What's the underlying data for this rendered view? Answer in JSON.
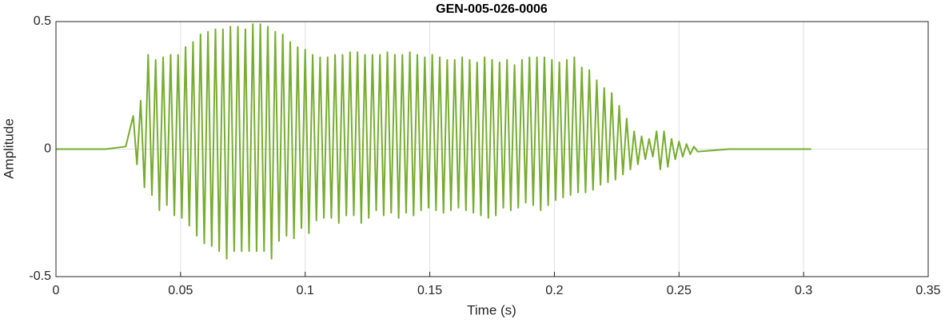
{
  "chart_data": {
    "type": "line",
    "title": "GEN-005-026-0006",
    "xlabel": "Time (s)",
    "ylabel": "Amplitude",
    "xlim": [
      0,
      0.35
    ],
    "xticks": [
      0,
      0.05,
      0.1,
      0.15,
      0.2,
      0.25,
      0.3,
      0.35
    ],
    "ylim": [
      -0.5,
      0.5
    ],
    "yticks": [
      -0.5,
      0,
      0.5
    ],
    "grid": true,
    "series": [
      {
        "color": "#77ac30",
        "x": [
          0,
          0.01,
          0.02,
          0.028,
          0.031,
          0.0325,
          0.034,
          0.0355,
          0.037,
          0.0385,
          0.04,
          0.0415,
          0.043,
          0.0445,
          0.046,
          0.0475,
          0.049,
          0.0505,
          0.052,
          0.0535,
          0.055,
          0.0565,
          0.058,
          0.0595,
          0.061,
          0.0625,
          0.064,
          0.0655,
          0.067,
          0.0685,
          0.07,
          0.0715,
          0.073,
          0.0745,
          0.076,
          0.0775,
          0.079,
          0.0805,
          0.082,
          0.0835,
          0.085,
          0.0865,
          0.088,
          0.0895,
          0.091,
          0.0925,
          0.094,
          0.0955,
          0.097,
          0.0985,
          0.1,
          0.1015,
          0.103,
          0.1045,
          0.106,
          0.1075,
          0.109,
          0.1105,
          0.112,
          0.1135,
          0.115,
          0.1165,
          0.118,
          0.1195,
          0.121,
          0.1225,
          0.124,
          0.1255,
          0.127,
          0.1285,
          0.13,
          0.1315,
          0.133,
          0.1345,
          0.136,
          0.1375,
          0.139,
          0.1405,
          0.142,
          0.1435,
          0.145,
          0.1465,
          0.148,
          0.1495,
          0.151,
          0.1525,
          0.154,
          0.1555,
          0.157,
          0.1585,
          0.16,
          0.1615,
          0.163,
          0.1645,
          0.166,
          0.1675,
          0.169,
          0.1705,
          0.172,
          0.1735,
          0.175,
          0.1765,
          0.178,
          0.1795,
          0.181,
          0.1825,
          0.184,
          0.1855,
          0.187,
          0.1885,
          0.19,
          0.1915,
          0.193,
          0.1945,
          0.196,
          0.1975,
          0.199,
          0.2005,
          0.202,
          0.2035,
          0.205,
          0.2065,
          0.208,
          0.2095,
          0.211,
          0.2125,
          0.214,
          0.2155,
          0.217,
          0.2185,
          0.22,
          0.2215,
          0.223,
          0.2245,
          0.226,
          0.2275,
          0.229,
          0.2305,
          0.232,
          0.2335,
          0.235,
          0.2365,
          0.238,
          0.2395,
          0.241,
          0.2425,
          0.244,
          0.2455,
          0.247,
          0.2485,
          0.25,
          0.2515,
          0.253,
          0.2545,
          0.256,
          0.2575,
          0.27,
          0.29,
          0.303
        ],
        "values": [
          0,
          0,
          0,
          0.01,
          0.13,
          -0.06,
          0.19,
          -0.15,
          0.37,
          -0.18,
          0.35,
          -0.24,
          0.36,
          -0.22,
          0.37,
          -0.26,
          0.37,
          -0.27,
          0.4,
          -0.3,
          0.42,
          -0.34,
          0.45,
          -0.37,
          0.46,
          -0.38,
          0.47,
          -0.4,
          0.47,
          -0.43,
          0.48,
          -0.4,
          0.48,
          -0.4,
          0.47,
          -0.4,
          0.49,
          -0.4,
          0.49,
          -0.4,
          0.48,
          -0.43,
          0.46,
          -0.36,
          0.45,
          -0.34,
          0.42,
          -0.35,
          0.4,
          -0.31,
          0.39,
          -0.33,
          0.37,
          -0.28,
          0.36,
          -0.27,
          0.36,
          -0.27,
          0.37,
          -0.29,
          0.37,
          -0.26,
          0.38,
          -0.26,
          0.38,
          -0.29,
          0.37,
          -0.27,
          0.37,
          -0.24,
          0.37,
          -0.26,
          0.38,
          -0.25,
          0.37,
          -0.27,
          0.37,
          -0.25,
          0.38,
          -0.26,
          0.37,
          -0.24,
          0.36,
          -0.23,
          0.37,
          -0.24,
          0.36,
          -0.25,
          0.35,
          -0.24,
          0.35,
          -0.23,
          0.36,
          -0.24,
          0.35,
          -0.25,
          0.34,
          -0.26,
          0.36,
          -0.27,
          0.35,
          -0.26,
          0.34,
          -0.23,
          0.35,
          -0.24,
          0.33,
          -0.23,
          0.35,
          -0.21,
          0.36,
          -0.22,
          0.36,
          -0.24,
          0.36,
          -0.22,
          0.35,
          -0.2,
          0.34,
          -0.19,
          0.35,
          -0.18,
          0.36,
          -0.17,
          0.32,
          -0.17,
          0.31,
          -0.16,
          0.27,
          -0.14,
          0.24,
          -0.13,
          0.22,
          -0.12,
          0.17,
          -0.1,
          0.12,
          -0.08,
          0.07,
          -0.06,
          0.05,
          -0.04,
          0.04,
          -0.03,
          0.07,
          -0.08,
          0.07,
          -0.07,
          0.04,
          -0.04,
          0.03,
          -0.03,
          0.02,
          -0.02,
          0.01,
          -0.01,
          0,
          0,
          0
        ]
      }
    ]
  }
}
